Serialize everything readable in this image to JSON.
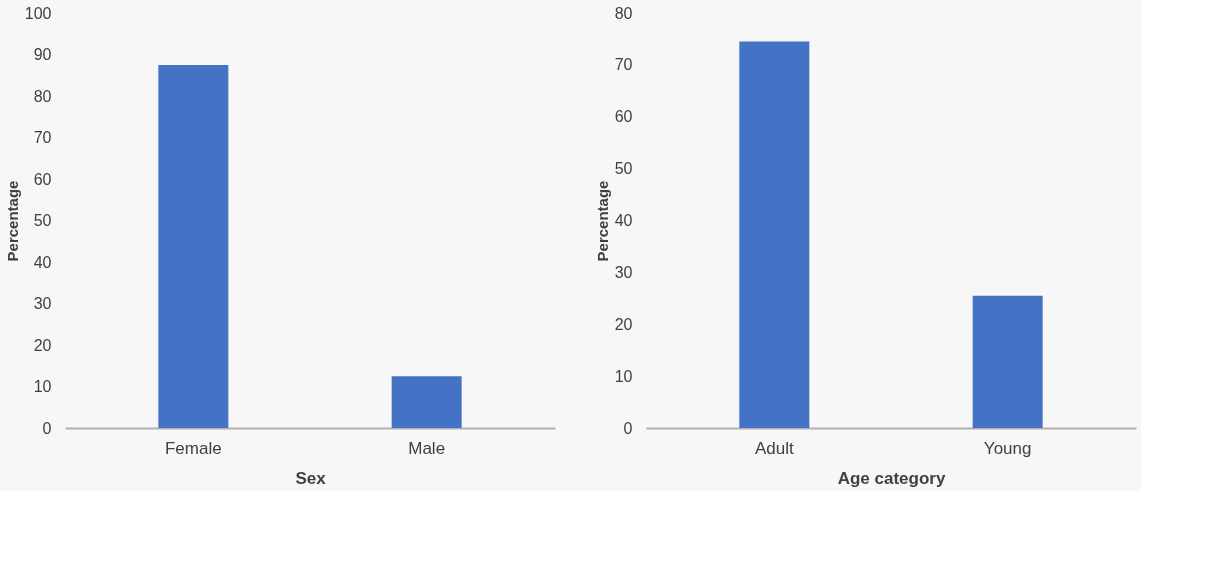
{
  "chart_data": [
    {
      "type": "bar",
      "xlabel": "Sex",
      "ylabel": "Percentage",
      "categories": [
        "Female",
        "Male"
      ],
      "values": [
        87.5,
        12.5
      ],
      "color": "#4472c4",
      "ylim": [
        0,
        100
      ],
      "yticks": [
        0,
        10,
        20,
        30,
        40,
        50,
        60,
        70,
        80,
        90,
        100
      ],
      "grid": false
    },
    {
      "type": "bar",
      "xlabel": "Age category",
      "ylabel": "Percentage",
      "categories": [
        "Adult",
        "Young"
      ],
      "values": [
        74.5,
        25.5
      ],
      "color": "#4472c4",
      "ylim": [
        0,
        80
      ],
      "yticks": [
        0,
        10,
        20,
        30,
        40,
        50,
        60,
        70,
        80
      ],
      "grid": false
    }
  ]
}
